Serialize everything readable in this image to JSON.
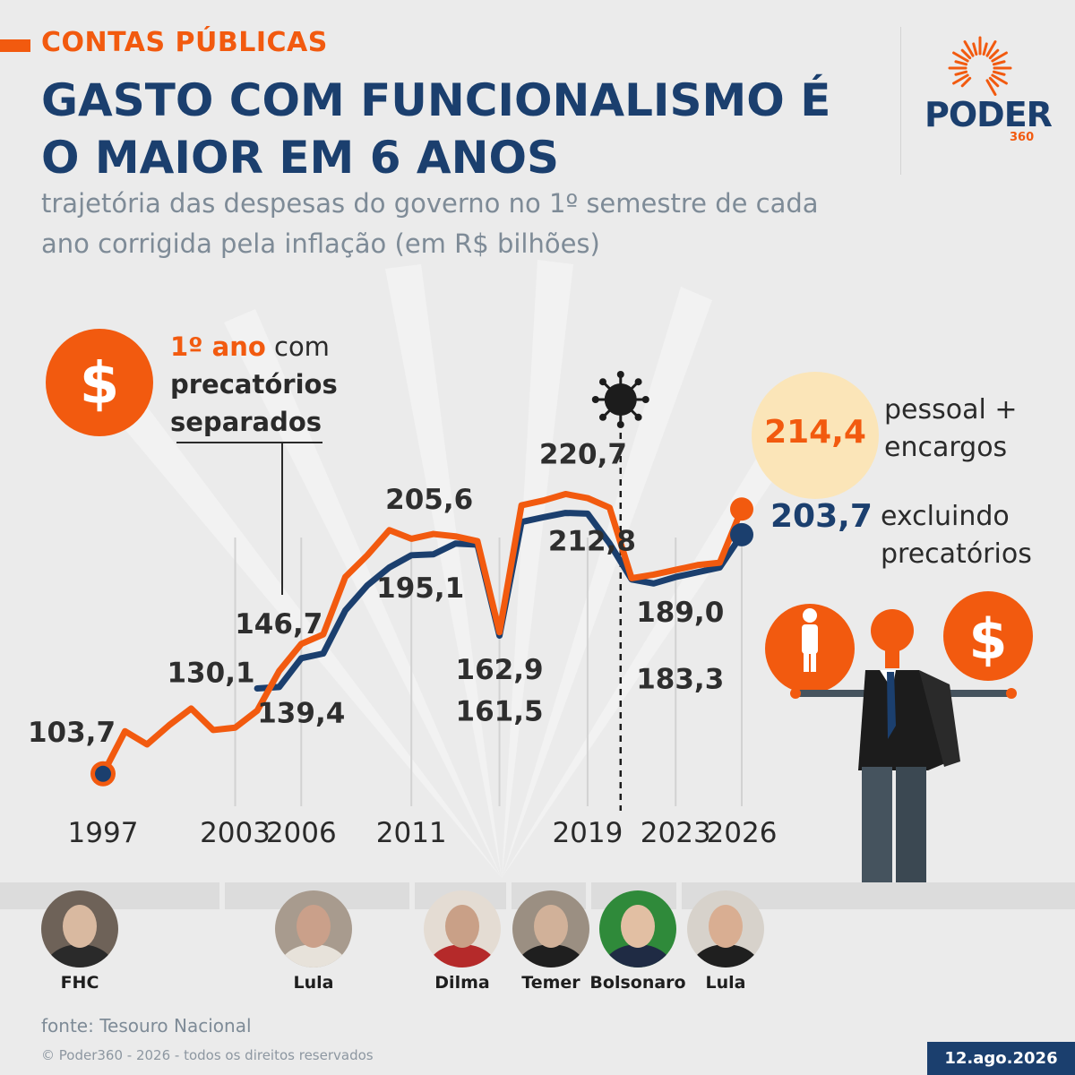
{
  "header": {
    "kicker": "CONTAS PÚBLICAS",
    "title": "GASTO COM FUNCIONALISMO É O MAIOR EM 6 ANOS",
    "subtitle": "trajetória das despesas do governo no 1º semestre de cada ano corrigida pela inflação (em R$ bilhões)"
  },
  "logo": {
    "name": "PODER",
    "sub": "360"
  },
  "colors": {
    "orange": "#f25a0f",
    "navy": "#1b3f6e",
    "background": "#ebebeb",
    "gray_text": "#7e8b97",
    "cream": "#fbe5b8"
  },
  "annotations": {
    "precatorios_bold_orange": "1º ano",
    "precatorios_rest": " com",
    "precatorios_line2": "precatórios",
    "precatorios_line3": "separados",
    "dollar_icon": "dollar-sign-icon",
    "covid_icon": "coronavirus-icon",
    "person_icon": "person-icon"
  },
  "legend": {
    "total_value": "214,4",
    "total_label_1": "pessoal +",
    "total_label_2": "encargos",
    "excl_value": "203,7",
    "excl_label_1": "excluindo",
    "excl_label_2": "precatórios"
  },
  "chart_data": {
    "type": "line",
    "x_ticks": [
      "1997",
      "2003",
      "2006",
      "2011",
      "2019",
      "2023",
      "2026"
    ],
    "xlim": [
      1997,
      2026
    ],
    "ylim": [
      95,
      225
    ],
    "series": [
      {
        "name": "pessoal + encargos",
        "color": "#f25a0f",
        "x": [
          1997,
          1998,
          1999,
          2000,
          2001,
          2002,
          2003,
          2004,
          2005,
          2006,
          2007,
          2008,
          2009,
          2010,
          2011,
          2012,
          2013,
          2014,
          2015,
          2016,
          2017,
          2018,
          2019,
          2020,
          2021,
          2022,
          2023,
          2024,
          2025,
          2026
        ],
        "y": [
          103.7,
          121.5,
          116.0,
          124.0,
          131.0,
          122.0,
          123.0,
          130.1,
          146.7,
          158.0,
          162.0,
          186.0,
          195.1,
          205.6,
          202.0,
          204.0,
          203.0,
          201.0,
          162.9,
          216.0,
          218.0,
          220.7,
          219.0,
          215.0,
          185.5,
          187.0,
          189.0,
          191.0,
          192.0,
          214.4
        ]
      },
      {
        "name": "excluindo precatórios",
        "color": "#1b3f6e",
        "x": [
          2004,
          2005,
          2006,
          2007,
          2008,
          2009,
          2010,
          2011,
          2012,
          2013,
          2014,
          2015,
          2016,
          2017,
          2018,
          2019,
          2020,
          2021,
          2022,
          2023,
          2024,
          2025,
          2026
        ],
        "y": [
          139.4,
          140.0,
          152.0,
          154.0,
          172.0,
          182.5,
          190.0,
          195.1,
          195.5,
          200.0,
          199.5,
          161.5,
          209.0,
          211.0,
          212.8,
          212.5,
          200.0,
          185.0,
          183.3,
          186.0,
          188.0,
          190.0,
          203.7
        ]
      }
    ],
    "data_labels": [
      {
        "text": "103,7",
        "x": 1997,
        "y": 103.7
      },
      {
        "text": "130,1",
        "x": 2003,
        "y": 130.1
      },
      {
        "text": "146,7",
        "x": 2006,
        "y": 146.7
      },
      {
        "text": "139,4",
        "x": 2006,
        "y": 139.4
      },
      {
        "text": "205,6",
        "x": 2011,
        "y": 205.6
      },
      {
        "text": "195,1",
        "x": 2011,
        "y": 195.1
      },
      {
        "text": "162,9",
        "x": 2015,
        "y": 162.9
      },
      {
        "text": "161,5",
        "x": 2015,
        "y": 161.5
      },
      {
        "text": "220,7",
        "x": 2019,
        "y": 220.7
      },
      {
        "text": "212,8",
        "x": 2019,
        "y": 212.8
      },
      {
        "text": "189,0",
        "x": 2023,
        "y": 189.0
      },
      {
        "text": "183,3",
        "x": 2023,
        "y": 183.3
      }
    ],
    "covid_marker_x": 2020.5
  },
  "presidents": [
    {
      "name": "FHC"
    },
    {
      "name": "Lula"
    },
    {
      "name": "Dilma"
    },
    {
      "name": "Temer"
    },
    {
      "name": "Bolsonaro"
    },
    {
      "name": "Lula"
    }
  ],
  "footer": {
    "source": "fonte: Tesouro Nacional",
    "copyright": "© Poder360 - 2026 - todos os direitos reservados",
    "date": "12.ago.2026"
  }
}
